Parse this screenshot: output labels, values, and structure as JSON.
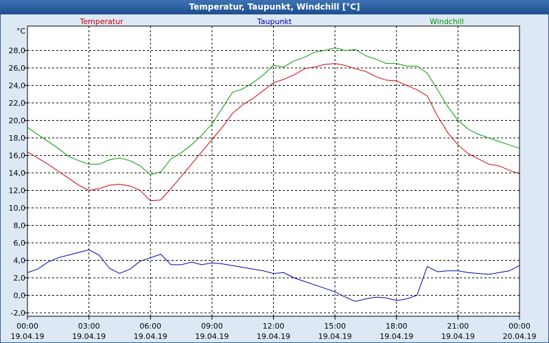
{
  "chart_data": {
    "type": "line",
    "title": "Temperatur, Taupunkt, Windchill [°C]",
    "ylabel": "°C",
    "ylim": [
      -2,
      30
    ],
    "yticks": [
      "-2,0",
      "0,0",
      "2,0",
      "4,0",
      "6,0",
      "8,0",
      "10,0",
      "12,0",
      "14,0",
      "16,0",
      "18,0",
      "20,0",
      "22,0",
      "24,0",
      "26,0",
      "28,0"
    ],
    "xticks": [
      {
        "time": "00:00",
        "date": "19.04.19"
      },
      {
        "time": "03:00",
        "date": "19.04.19"
      },
      {
        "time": "06:00",
        "date": "19.04.19"
      },
      {
        "time": "09:00",
        "date": "19.04.19"
      },
      {
        "time": "12:00",
        "date": "19.04.19"
      },
      {
        "time": "15:00",
        "date": "19.04.19"
      },
      {
        "time": "18:00",
        "date": "19.04.19"
      },
      {
        "time": "21:00",
        "date": "19.04.19"
      },
      {
        "time": "00:00",
        "date": "20.04.19"
      }
    ],
    "grid": true,
    "colors": {
      "Temperatur": "#cc0000",
      "Taupunkt": "#0000aa",
      "Windchill": "#009900"
    },
    "series": [
      {
        "name": "Temperatur",
        "x": [
          0,
          0.5,
          1,
          1.5,
          2,
          2.5,
          3,
          3.5,
          4,
          4.5,
          5,
          5.5,
          6,
          6.5,
          7,
          7.5,
          8,
          8.5,
          9,
          9.5,
          10,
          10.5,
          11,
          11.5,
          12,
          12.5,
          13,
          13.5,
          14,
          14.5,
          15,
          15.5,
          16,
          16.5,
          17,
          17.5,
          18,
          18.5,
          19,
          19.5,
          20,
          20.5,
          21,
          21.5,
          22,
          22.5,
          23,
          23.5,
          24
        ],
        "values": [
          16.4,
          15.7,
          15.0,
          14.2,
          13.4,
          12.6,
          12.0,
          12.2,
          12.6,
          12.7,
          12.5,
          12.0,
          10.8,
          10.9,
          12.2,
          13.6,
          15.0,
          16.4,
          17.8,
          19.2,
          20.8,
          21.8,
          22.5,
          23.4,
          24.3,
          24.7,
          25.2,
          25.9,
          26.1,
          26.4,
          26.5,
          26.3,
          25.9,
          25.6,
          25.0,
          24.6,
          24.5,
          24.0,
          23.5,
          22.8,
          20.5,
          18.6,
          17.2,
          16.2,
          15.6,
          15.0,
          14.8,
          14.3,
          13.9
        ]
      },
      {
        "name": "Taupunkt",
        "x": [
          0,
          0.5,
          1,
          1.5,
          2,
          2.5,
          3,
          3.5,
          4,
          4.5,
          5,
          5.5,
          6,
          6.5,
          7,
          7.5,
          8,
          8.5,
          9,
          9.5,
          10,
          10.5,
          11,
          11.5,
          12,
          12.5,
          13,
          13.5,
          14,
          14.5,
          15,
          15.5,
          16,
          16.5,
          17,
          17.5,
          18,
          18.5,
          19,
          19.5,
          20,
          20.5,
          21,
          21.5,
          22,
          22.5,
          23,
          23.5,
          24
        ],
        "values": [
          2.6,
          3.0,
          3.8,
          4.3,
          4.6,
          4.9,
          5.2,
          4.6,
          3.1,
          2.5,
          3.0,
          3.9,
          4.3,
          4.7,
          3.5,
          3.5,
          3.8,
          3.5,
          3.7,
          3.6,
          3.4,
          3.2,
          3.0,
          2.8,
          2.5,
          2.6,
          2.0,
          1.6,
          1.2,
          0.8,
          0.4,
          -0.2,
          -0.7,
          -0.4,
          -0.2,
          -0.3,
          -0.6,
          -0.4,
          0.0,
          3.3,
          2.7,
          2.8,
          2.8,
          2.6,
          2.5,
          2.4,
          2.6,
          2.8,
          3.4
        ]
      },
      {
        "name": "Windchill",
        "x": [
          0,
          0.5,
          1,
          1.5,
          2,
          2.5,
          3,
          3.5,
          4,
          4.5,
          5,
          5.5,
          6,
          6.5,
          7,
          7.5,
          8,
          8.5,
          9,
          9.5,
          10,
          10.5,
          11,
          11.5,
          12,
          12.5,
          13,
          13.5,
          14,
          14.5,
          15,
          15.5,
          16,
          16.5,
          17,
          17.5,
          18,
          18.5,
          19,
          19.5,
          20,
          20.5,
          21,
          21.5,
          22,
          22.5,
          23,
          23.5,
          24
        ],
        "values": [
          19.2,
          18.4,
          17.6,
          16.8,
          15.9,
          15.4,
          15.0,
          15.0,
          15.5,
          15.7,
          15.4,
          14.8,
          13.8,
          14.1,
          15.6,
          16.3,
          17.2,
          18.3,
          19.6,
          21.4,
          23.2,
          23.6,
          24.3,
          25.2,
          26.3,
          26.1,
          26.8,
          27.2,
          27.8,
          28.0,
          28.3,
          28.0,
          28.1,
          27.4,
          27.0,
          26.5,
          26.5,
          26.2,
          26.2,
          25.4,
          23.5,
          21.6,
          20.0,
          19.0,
          18.4,
          18.0,
          17.6,
          17.2,
          16.8
        ]
      }
    ]
  }
}
